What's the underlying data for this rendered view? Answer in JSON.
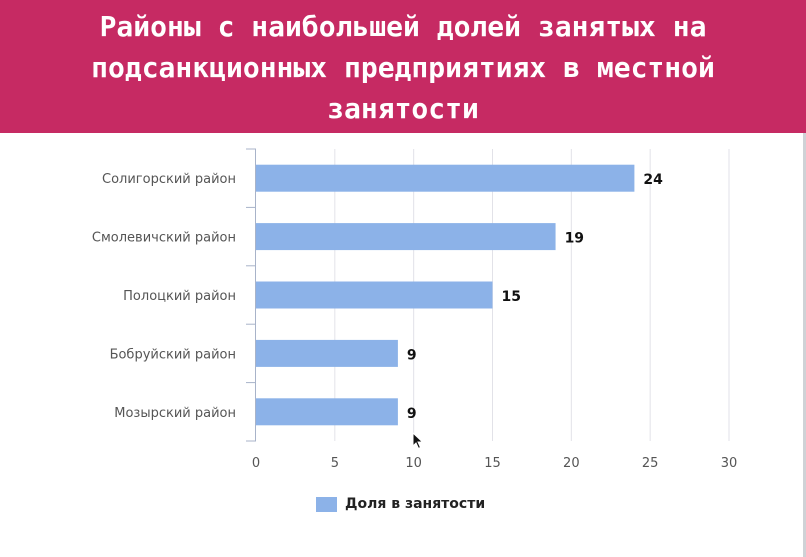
{
  "title": "Районы с наибольшей долей занятых на подсанкционных предприятиях в местной занятости",
  "chart_data": {
    "type": "bar",
    "orientation": "horizontal",
    "categories": [
      "Солигорский район",
      "Смолевичский район",
      "Полоцкий район",
      "Бобруйский район",
      "Мозырский район"
    ],
    "series": [
      {
        "name": "Доля в занятости",
        "values": [
          24,
          19,
          15,
          9,
          9
        ],
        "color": "#8cb2e8"
      }
    ],
    "xlim": [
      0,
      30
    ],
    "xticks": [
      0,
      5,
      10,
      15,
      20,
      25,
      30
    ],
    "grid": true,
    "legend_position": "bottom"
  },
  "colors": {
    "header_bg": "#c62a63",
    "bar": "#8cb2e8",
    "grid": "#e2e2e8"
  }
}
